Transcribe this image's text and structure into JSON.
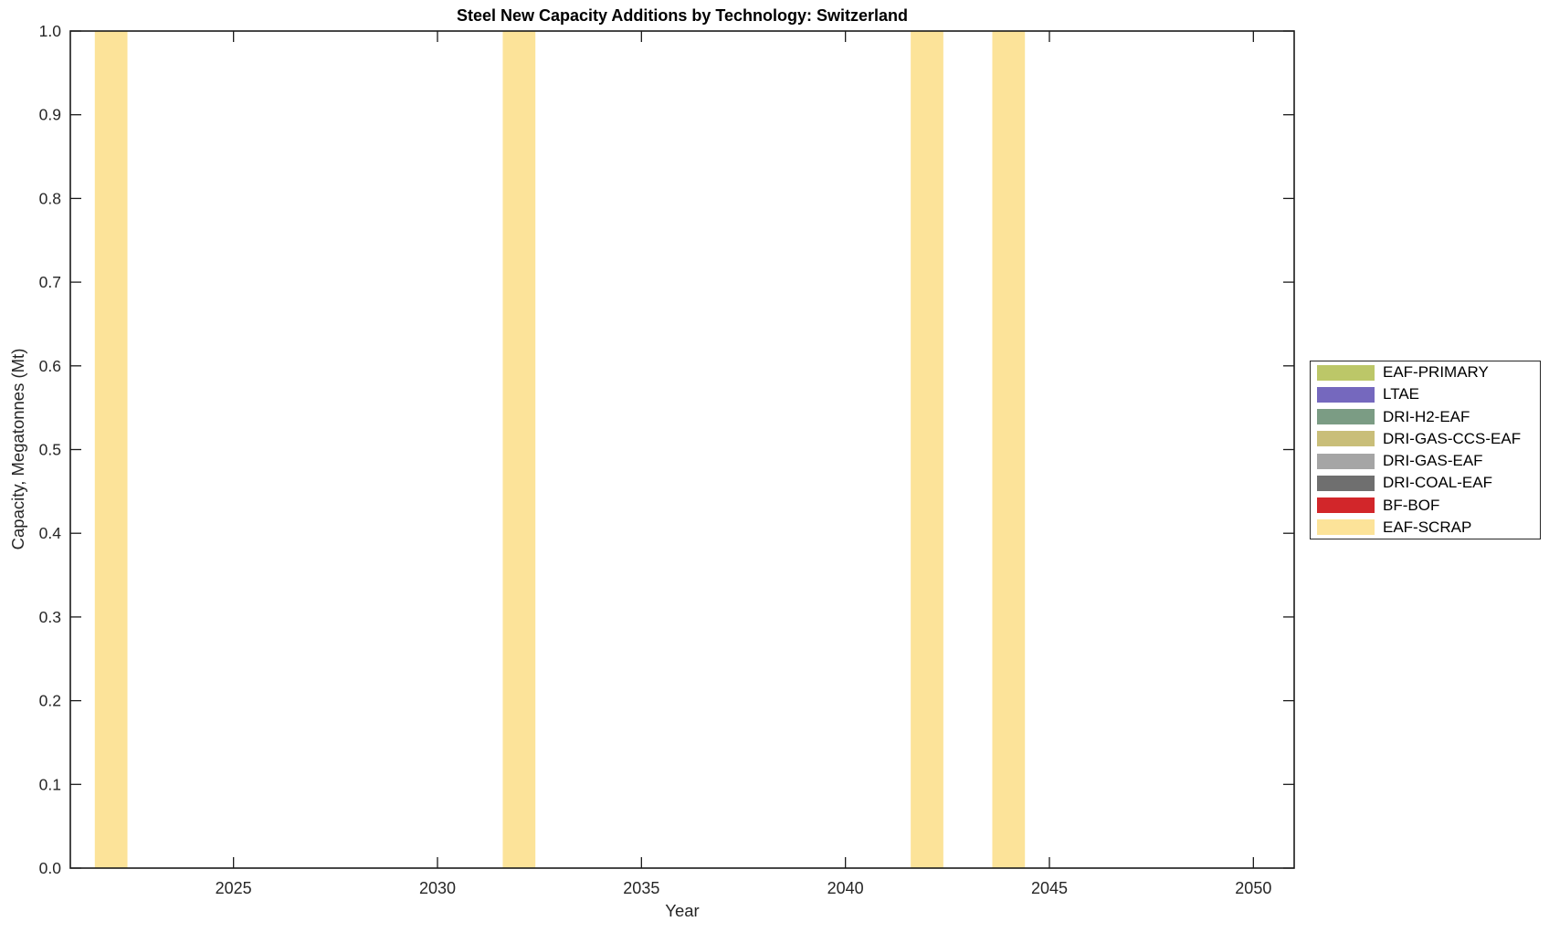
{
  "figure": {
    "background": "#ffffff",
    "axis_color": "#1a1a1a",
    "text_color": "#262626"
  },
  "chart_data": {
    "type": "bar",
    "title": "Steel New Capacity Additions by Technology: Switzerland",
    "xlabel": "Year",
    "ylabel": "Capacity, Megatonnes (Mt)",
    "xlim": [
      2021,
      2051
    ],
    "ylim": [
      0.0,
      1.0
    ],
    "x_ticks": [
      "2025",
      "2030",
      "2035",
      "2040",
      "2045",
      "2050"
    ],
    "y_ticks": [
      "0.0",
      "0.1",
      "0.2",
      "0.3",
      "0.4",
      "0.5",
      "0.6",
      "0.7",
      "0.8",
      "0.9",
      "1.0"
    ],
    "grid": false,
    "stacked": true,
    "bar_width_years": 0.8,
    "legend_position": "right-outside",
    "series": [
      {
        "name": "EAF-PRIMARY",
        "color": "#BCC768",
        "data": []
      },
      {
        "name": "LTAE",
        "color": "#7568BE",
        "data": []
      },
      {
        "name": "DRI-H2-EAF",
        "color": "#7B9C84",
        "data": []
      },
      {
        "name": "DRI-GAS-CCS-EAF",
        "color": "#C9BE79",
        "data": []
      },
      {
        "name": "DRI-GAS-EAF",
        "color": "#A5A5A5",
        "data": []
      },
      {
        "name": "DRI-COAL-EAF",
        "color": "#6F6F6F",
        "data": []
      },
      {
        "name": "BF-BOF",
        "color": "#D2262A",
        "data": []
      },
      {
        "name": "EAF-SCRAP",
        "color": "#FCE399",
        "data": [
          {
            "year": 2022,
            "value": 1.0
          },
          {
            "year": 2032,
            "value": 1.0
          },
          {
            "year": 2042,
            "value": 1.0
          },
          {
            "year": 2044,
            "value": 1.0
          }
        ]
      }
    ]
  }
}
